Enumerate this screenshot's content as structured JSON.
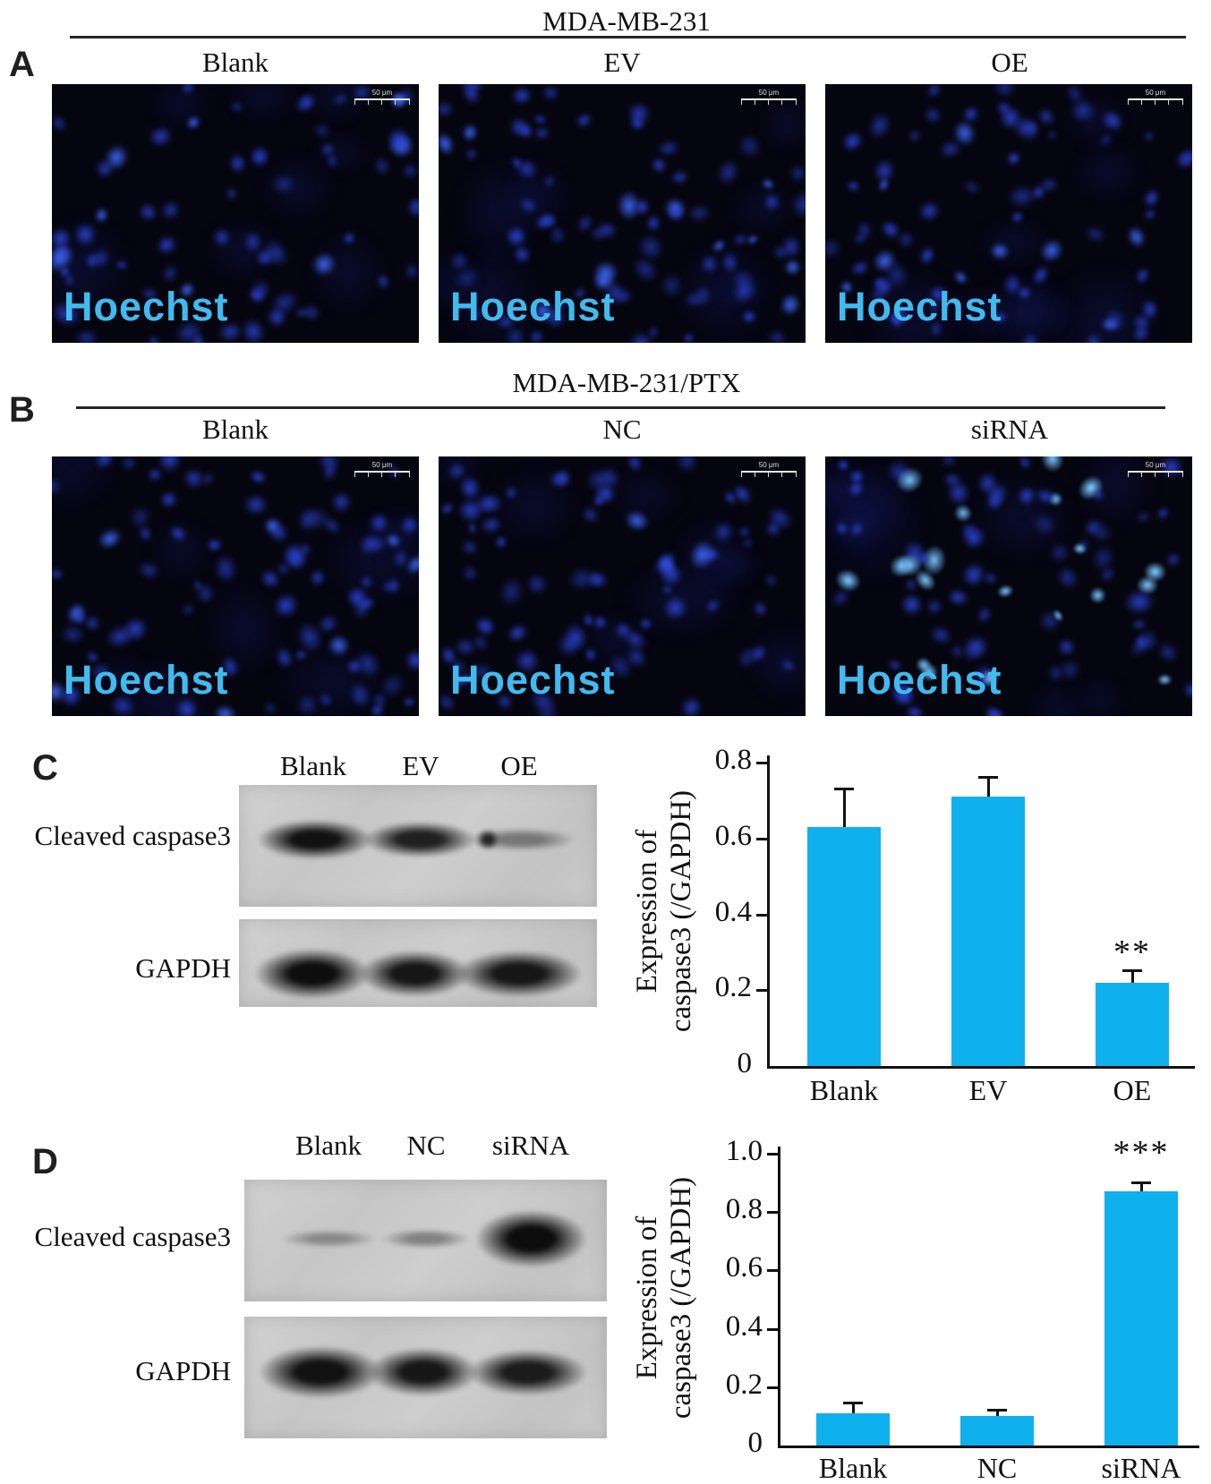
{
  "figure": {
    "panel_a": {
      "label": "A",
      "title": "MDA-MB-231",
      "columns": [
        "Blank",
        "EV",
        "OE"
      ],
      "overlay_text": "Hoechst",
      "scale_bar_text": "50 μm"
    },
    "panel_b": {
      "label": "B",
      "title": "MDA-MB-231/PTX",
      "columns": [
        "Blank",
        "NC",
        "siRNA"
      ],
      "overlay_text": "Hoechst",
      "scale_bar_text": "50 μm"
    },
    "panel_c": {
      "label": "C",
      "lanes": [
        "Blank",
        "EV",
        "OE"
      ],
      "blot_rows": [
        "Cleaved caspase3",
        "GAPDH"
      ]
    },
    "panel_d": {
      "label": "D",
      "lanes": [
        "Blank",
        "NC",
        "siRNA"
      ],
      "blot_rows": [
        "Cleaved caspase3",
        "GAPDH"
      ]
    }
  },
  "colors": {
    "bar_fill": "#0fb0ee",
    "hoechst_text": "#41baee",
    "axis": "#111111"
  },
  "chart_data": [
    {
      "type": "bar",
      "categories": [
        "Blank",
        "EV",
        "OE"
      ],
      "values": [
        0.63,
        0.71,
        0.22
      ],
      "errors": [
        0.1,
        0.05,
        0.03
      ],
      "annotations": [
        "",
        "",
        "**"
      ],
      "ylabel_line1": "Expression of",
      "ylabel_line2": "caspase3 (/GAPDH)",
      "ylabel": "Expression of caspase3 (/GAPDH)",
      "ylim": [
        0,
        0.8
      ],
      "yticks": [
        "0",
        "0.2",
        "0.4",
        "0.6",
        "0.8"
      ],
      "grid": false,
      "legend": false
    },
    {
      "type": "bar",
      "categories": [
        "Blank",
        "NC",
        "siRNA"
      ],
      "values": [
        0.11,
        0.1,
        0.87
      ],
      "errors": [
        0.035,
        0.02,
        0.03
      ],
      "annotations": [
        "",
        "",
        "***"
      ],
      "ylabel_line1": "Expression of",
      "ylabel_line2": "caspase3 (/GAPDH)",
      "ylabel": "Expression of caspase3 (/GAPDH)",
      "ylim": [
        0,
        1.0
      ],
      "yticks": [
        "0",
        "0.2",
        "0.4",
        "0.6",
        "0.8",
        "1.0"
      ],
      "grid": false,
      "legend": false
    }
  ]
}
